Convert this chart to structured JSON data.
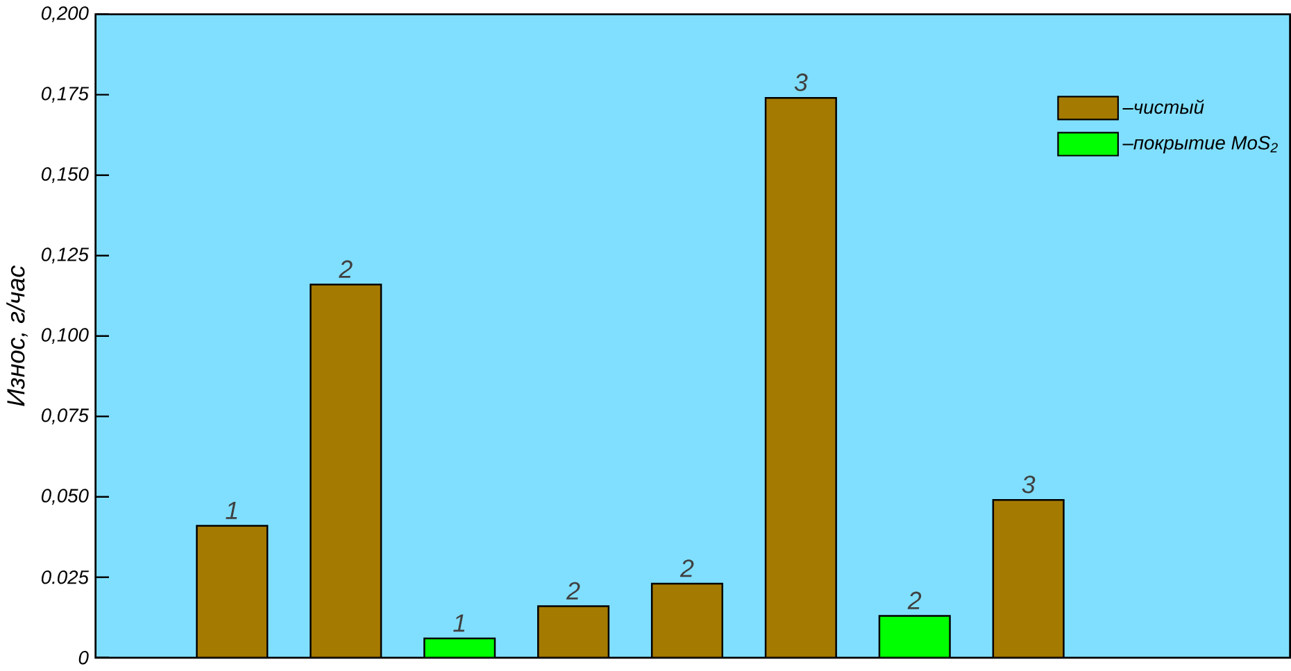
{
  "chart_data": {
    "type": "bar",
    "ylabel": "Износ,  г/час",
    "stacked": true,
    "categories": [
      null,
      null,
      null,
      null,
      null,
      null,
      null,
      null
    ],
    "series": [
      {
        "name": "–чистый",
        "color": "#a57a00",
        "values": [
          0.041,
          0.116,
          null,
          0.016,
          0.023,
          0.174,
          null,
          0.049
        ]
      },
      {
        "name": "–покрытие MoS$_{2}$",
        "color": "#00ff00",
        "values": [
          null,
          null,
          0.006,
          null,
          null,
          null,
          0.013,
          null
        ]
      }
    ],
    "annotations": [
      "1",
      "2",
      "1",
      "2",
      "2",
      "3",
      "2",
      "3"
    ],
    "ylim": [
      0,
      0.2
    ],
    "yticks": [
      {
        "value": 0,
        "label": "0"
      },
      {
        "value": 0.025,
        "label": "0.025"
      },
      {
        "value": 0.05,
        "label": "0,050"
      },
      {
        "value": 0.075,
        "label": "0,075"
      },
      {
        "value": 0.1,
        "label": "0,100"
      },
      {
        "value": 0.125,
        "label": "0,125"
      },
      {
        "value": 0.15,
        "label": "0,150"
      },
      {
        "value": 0.175,
        "label": "0,175"
      },
      {
        "value": 0.2,
        "label": "0,200"
      }
    ],
    "legend": "top right",
    "grid": false
  }
}
